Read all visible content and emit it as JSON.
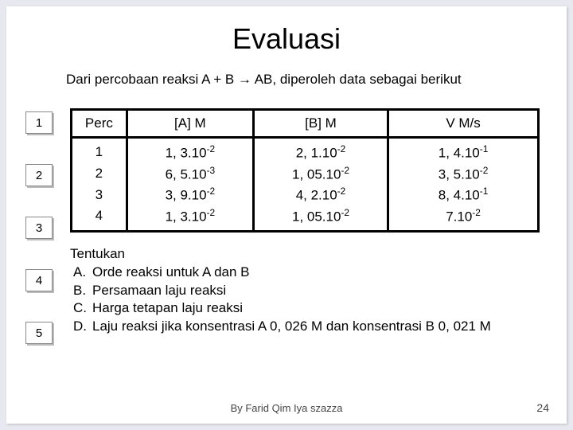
{
  "title": "Evaluasi",
  "intro_before": "Dari percobaan reaksi A + B ",
  "intro_arrow": "→",
  "intro_after": " AB, diperoleh data sebagai berikut",
  "nav": [
    "1",
    "2",
    "3",
    "4",
    "5"
  ],
  "table": {
    "headers": [
      "Perc",
      "[A] M",
      "[B] M",
      "V M/s"
    ],
    "rows": [
      {
        "perc": "1",
        "a_m": "1, 3.",
        "a_e": "10",
        "a_p": "-2",
        "b_m": "2, 1.",
        "b_e": "10",
        "b_p": "-2",
        "v_m": "1, 4.",
        "v_e": "10",
        "v_p": "-1"
      },
      {
        "perc": "2",
        "a_m": "6, 5.",
        "a_e": "10",
        "a_p": "-3",
        "b_m": "1, 05.",
        "b_e": "10",
        "b_p": "-2",
        "v_m": "3, 5.",
        "v_e": "10",
        "v_p": "-2"
      },
      {
        "perc": "3",
        "a_m": "3, 9.",
        "a_e": "10",
        "a_p": "-2",
        "b_m": "4, 2.",
        "b_e": "10",
        "b_p": "-2",
        "v_m": "8, 4.",
        "v_e": "10",
        "v_p": "-1"
      },
      {
        "perc": "4",
        "a_m": "1, 3.",
        "a_e": "10",
        "a_p": "-2",
        "b_m": "1, 05.",
        "b_e": "10",
        "b_p": "-2",
        "v_m": "7.",
        "v_e": "10",
        "v_p": "-2"
      }
    ]
  },
  "q_heading": "Tentukan",
  "questions": [
    {
      "l": "A.",
      "t": "Orde reaksi untuk A dan B"
    },
    {
      "l": "B.",
      "t": "Persamaan laju reaksi"
    },
    {
      "l": "C.",
      "t": "Harga tetapan laju reaksi"
    },
    {
      "l": "D.",
      "t": "Laju reaksi jika konsentrasi A 0, 026 M dan konsentrasi B 0, 021 M"
    }
  ],
  "footer": "By Farid Qim Iya szazza",
  "page": "24"
}
